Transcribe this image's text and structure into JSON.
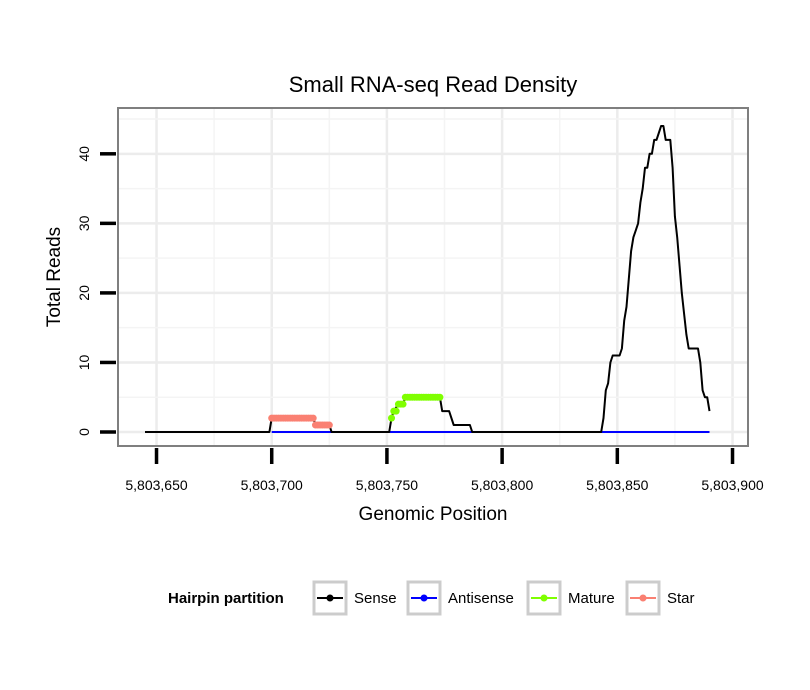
{
  "chart_data": {
    "type": "line",
    "title": "Small RNA-seq Read Density",
    "xlabel": "Genomic Position",
    "ylabel": "Total Reads",
    "xlim": [
      5803640,
      5803900
    ],
    "ylim": [
      -2,
      45
    ],
    "x_ticks": [
      5803650,
      5803700,
      5803750,
      5803800,
      5803850,
      5803900
    ],
    "x_tick_labels": [
      "5,803,650",
      "5,803,700",
      "5,803,750",
      "5,803,800",
      "5,803,850",
      "5,803,900"
    ],
    "y_ticks": [
      0,
      10,
      20,
      30,
      40
    ],
    "y_tick_labels": [
      "0",
      "10",
      "20",
      "30",
      "40"
    ],
    "grid": true,
    "legend": {
      "title": "Hairpin partition",
      "position": "bottom",
      "entries": [
        {
          "name": "Sense",
          "color": "#000000"
        },
        {
          "name": "Antisense",
          "color": "#0000ff"
        },
        {
          "name": "Mature",
          "color": "#7fff00"
        },
        {
          "name": "Star",
          "color": "#fa8072"
        }
      ]
    },
    "series": [
      {
        "name": "Sense",
        "color": "#000000",
        "style": "line",
        "points": [
          [
            5803645,
            0
          ],
          [
            5803699,
            0
          ],
          [
            5803700,
            2
          ],
          [
            5803718,
            2
          ],
          [
            5803719,
            1
          ],
          [
            5803725,
            1
          ],
          [
            5803726,
            0
          ],
          [
            5803751,
            0
          ],
          [
            5803752,
            2
          ],
          [
            5803753,
            3
          ],
          [
            5803755,
            4
          ],
          [
            5803757,
            4
          ],
          [
            5803758,
            5
          ],
          [
            5803773,
            5
          ],
          [
            5803774,
            3
          ],
          [
            5803777,
            3
          ],
          [
            5803779,
            1
          ],
          [
            5803786,
            1
          ],
          [
            5803787,
            0
          ],
          [
            5803843,
            0
          ],
          [
            5803844,
            2
          ],
          [
            5803845,
            6
          ],
          [
            5803846,
            7
          ],
          [
            5803847,
            10
          ],
          [
            5803848,
            11
          ],
          [
            5803851,
            11
          ],
          [
            5803852,
            12
          ],
          [
            5803853,
            16
          ],
          [
            5803854,
            18
          ],
          [
            5803855,
            22
          ],
          [
            5803856,
            26
          ],
          [
            5803857,
            28
          ],
          [
            5803858,
            29
          ],
          [
            5803859,
            30
          ],
          [
            5803860,
            33
          ],
          [
            5803861,
            35
          ],
          [
            5803862,
            38
          ],
          [
            5803863,
            38
          ],
          [
            5803864,
            40
          ],
          [
            5803865,
            40
          ],
          [
            5803866,
            42
          ],
          [
            5803867,
            42
          ],
          [
            5803868,
            43
          ],
          [
            5803869,
            44
          ],
          [
            5803870,
            44
          ],
          [
            5803871,
            42
          ],
          [
            5803873,
            42
          ],
          [
            5803874,
            38
          ],
          [
            5803875,
            31
          ],
          [
            5803876,
            28
          ],
          [
            5803877,
            24
          ],
          [
            5803878,
            20
          ],
          [
            5803879,
            17
          ],
          [
            5803880,
            14
          ],
          [
            5803881,
            12
          ],
          [
            5803885,
            12
          ],
          [
            5803886,
            10
          ],
          [
            5803887,
            6
          ],
          [
            5803888,
            5
          ],
          [
            5803889,
            5
          ],
          [
            5803890,
            3
          ]
        ]
      },
      {
        "name": "Antisense",
        "color": "#0000ff",
        "style": "line",
        "points": [
          [
            5803700,
            0
          ],
          [
            5803890,
            0
          ]
        ]
      },
      {
        "name": "Mature",
        "color": "#7fff00",
        "style": "points",
        "points": [
          [
            5803752,
            2
          ],
          [
            5803753,
            3
          ],
          [
            5803754,
            3
          ],
          [
            5803755,
            4
          ],
          [
            5803756,
            4
          ],
          [
            5803757,
            4
          ],
          [
            5803758,
            5
          ],
          [
            5803759,
            5
          ],
          [
            5803760,
            5
          ],
          [
            5803761,
            5
          ],
          [
            5803762,
            5
          ],
          [
            5803763,
            5
          ],
          [
            5803764,
            5
          ],
          [
            5803765,
            5
          ],
          [
            5803766,
            5
          ],
          [
            5803767,
            5
          ],
          [
            5803768,
            5
          ],
          [
            5803769,
            5
          ],
          [
            5803770,
            5
          ],
          [
            5803771,
            5
          ],
          [
            5803772,
            5
          ],
          [
            5803773,
            5
          ]
        ]
      },
      {
        "name": "Star",
        "color": "#fa8072",
        "style": "points",
        "points": [
          [
            5803700,
            2
          ],
          [
            5803701,
            2
          ],
          [
            5803702,
            2
          ],
          [
            5803703,
            2
          ],
          [
            5803704,
            2
          ],
          [
            5803705,
            2
          ],
          [
            5803706,
            2
          ],
          [
            5803707,
            2
          ],
          [
            5803708,
            2
          ],
          [
            5803709,
            2
          ],
          [
            5803710,
            2
          ],
          [
            5803711,
            2
          ],
          [
            5803712,
            2
          ],
          [
            5803713,
            2
          ],
          [
            5803714,
            2
          ],
          [
            5803715,
            2
          ],
          [
            5803716,
            2
          ],
          [
            5803717,
            2
          ],
          [
            5803718,
            2
          ],
          [
            5803719,
            1
          ],
          [
            5803720,
            1
          ],
          [
            5803721,
            1
          ],
          [
            5803722,
            1
          ],
          [
            5803723,
            1
          ],
          [
            5803724,
            1
          ],
          [
            5803725,
            1
          ]
        ]
      }
    ]
  }
}
